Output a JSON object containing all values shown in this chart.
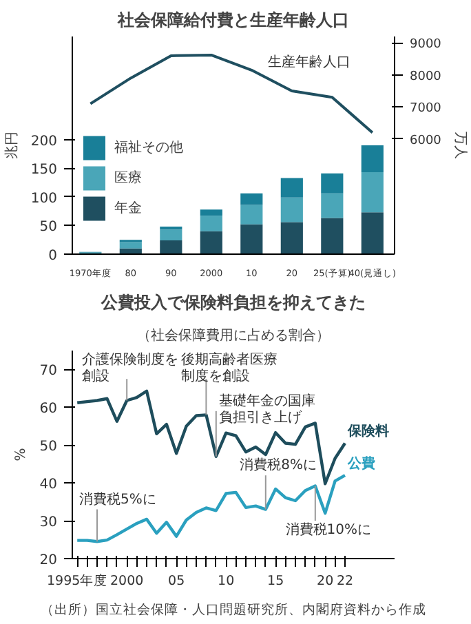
{
  "chart_data": [
    {
      "type": "bar",
      "title": "社会保障給付費と生産年齢人口",
      "ylabel": "兆円",
      "y2label": "万人",
      "categories": [
        "1970年度",
        "80",
        "90",
        "2000",
        "10",
        "20",
        "25(予算)",
        "40(見通し)"
      ],
      "stacked": true,
      "legend": "left",
      "grid": false,
      "ylim": [
        0,
        380
      ],
      "yticks": [
        0,
        50,
        100,
        150,
        200
      ],
      "y2lim": [
        2400,
        9200
      ],
      "y2ticks": [
        6000,
        7000,
        8000,
        9000
      ],
      "series": [
        {
          "name": "年金",
          "color": "#1f4f60",
          "values": [
            1,
            10,
            24,
            40,
            52,
            56,
            63,
            73
          ]
        },
        {
          "name": "医療",
          "color": "#4aa6b8",
          "values": [
            2,
            11,
            19,
            27,
            34,
            43,
            43,
            70
          ]
        },
        {
          "name": "福祉その他",
          "color": "#197f98",
          "values": [
            1,
            4,
            5,
            11,
            20,
            34,
            35,
            47
          ]
        },
        {
          "name": "生産年齢人口",
          "type": "line",
          "axis": "y2",
          "color": "#1f4f60",
          "values": [
            7100,
            7900,
            8600,
            8620,
            8150,
            7500,
            7300,
            6200
          ]
        }
      ]
    },
    {
      "type": "line",
      "title": "公費投入で保険料負担を抑えてきた",
      "subtitle": "（社会保障費用に占める割合）",
      "ylabel": "%",
      "grid": false,
      "marker": "none",
      "line_style": "solid",
      "x": [
        1995,
        1996,
        1997,
        1998,
        1999,
        2000,
        2001,
        2002,
        2003,
        2004,
        2005,
        2006,
        2007,
        2008,
        2009,
        2010,
        2011,
        2012,
        2013,
        2014,
        2015,
        2016,
        2017,
        2018,
        2019,
        2020,
        2021,
        2022
      ],
      "xlim": [
        1994.5,
        2027
      ],
      "xticks": [
        {
          "value": 1995,
          "label": "1995年度"
        },
        {
          "value": 1996,
          "label": null
        },
        {
          "value": 1997,
          "label": null
        },
        {
          "value": 1998,
          "label": null
        },
        {
          "value": 1999,
          "label": null
        },
        2000,
        {
          "value": 2001,
          "label": null
        },
        {
          "value": 2002,
          "label": null
        },
        {
          "value": 2003,
          "label": null
        },
        {
          "value": 2004,
          "label": null
        },
        {
          "value": 2005,
          "label": "05"
        },
        {
          "value": 2006,
          "label": null
        },
        {
          "value": 2007,
          "label": null
        },
        {
          "value": 2008,
          "label": null
        },
        {
          "value": 2009,
          "label": null
        },
        {
          "value": 2010,
          "label": "10"
        },
        {
          "value": 2011,
          "label": null
        },
        {
          "value": 2012,
          "label": null
        },
        {
          "value": 2013,
          "label": null
        },
        {
          "value": 2014,
          "label": null
        },
        {
          "value": 2015,
          "label": "15"
        },
        {
          "value": 2016,
          "label": null
        },
        {
          "value": 2017,
          "label": null
        },
        {
          "value": 2018,
          "label": null
        },
        {
          "value": 2019,
          "label": null
        },
        {
          "value": 2020,
          "label": "20"
        },
        {
          "value": 2021,
          "label": null
        },
        {
          "value": 2022,
          "label": "22"
        }
      ],
      "ylim": [
        20,
        75
      ],
      "yticks": [
        20,
        30,
        40,
        50,
        60,
        70
      ],
      "series": [
        {
          "name": "保険料",
          "color": "#1e4d5c",
          "values": [
            61.2,
            61.5,
            61.8,
            62.3,
            56.3,
            61.8,
            62.6,
            64.3,
            53.0,
            55.5,
            47.8,
            55.0,
            57.8,
            58.0,
            47.0,
            53.2,
            52.5,
            48.2,
            49.5,
            47.5,
            53.3,
            50.5,
            50.2,
            54.8,
            55.8,
            39.8,
            46.5,
            50.5
          ]
        },
        {
          "name": "公費",
          "color": "#2aa0bf",
          "values": [
            24.8,
            24.8,
            24.5,
            24.9,
            26.3,
            27.8,
            29.3,
            30.4,
            26.7,
            29.6,
            25.9,
            30.2,
            32.2,
            33.4,
            32.7,
            37.2,
            37.5,
            33.5,
            33.9,
            33.0,
            38.4,
            36.1,
            35.3,
            38.0,
            39.2,
            32.0,
            40.5,
            42.0
          ]
        }
      ],
      "annotations": [
        {
          "text": "介護保険制度を創設",
          "x": 2000,
          "y": 61.8
        },
        {
          "text": "後期高齢者医療制度を創設",
          "x": 2008,
          "y": 58.0
        },
        {
          "text": "基礎年金の国庫負担引き上げ",
          "x": 2009,
          "y": 47.0
        },
        {
          "text": "消費税5%に",
          "x": 1997,
          "y": 24.5
        },
        {
          "text": "消費税8%に",
          "x": 2014,
          "y": 33.0
        },
        {
          "text": "消費税10%に",
          "x": 2019,
          "y": 39.2
        },
        "（出所）国立社会保障・人口問題研究所、内閣府資料から作成"
      ]
    }
  ]
}
